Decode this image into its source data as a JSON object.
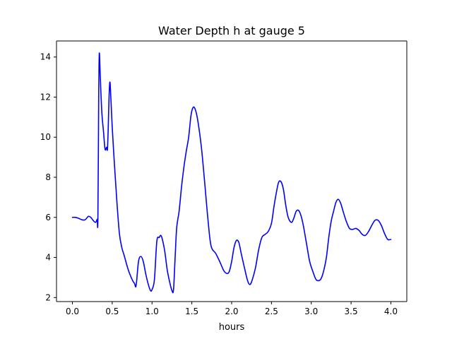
{
  "chart_data": {
    "type": "line",
    "title": "Water Depth h at gauge 5",
    "xlabel": "hours",
    "ylabel": "",
    "xlim": [
      -0.2,
      4.2
    ],
    "ylim": [
      1.8,
      14.8
    ],
    "xticks": [
      0.0,
      0.5,
      1.0,
      1.5,
      2.0,
      2.5,
      3.0,
      3.5,
      4.0
    ],
    "xtick_labels": [
      "0.0",
      "0.5",
      "1.0",
      "1.5",
      "2.0",
      "2.5",
      "3.0",
      "3.5",
      "4.0"
    ],
    "yticks": [
      2,
      4,
      6,
      8,
      10,
      12,
      14
    ],
    "ytick_labels": [
      "2",
      "4",
      "6",
      "8",
      "10",
      "12",
      "14"
    ],
    "grid": false,
    "series": [
      {
        "color": "#0000ff",
        "x": [
          0.0,
          0.04,
          0.08,
          0.12,
          0.16,
          0.2,
          0.23,
          0.26,
          0.29,
          0.31,
          0.32,
          0.33,
          0.335,
          0.34,
          0.35,
          0.37,
          0.39,
          0.41,
          0.43,
          0.44,
          0.45,
          0.46,
          0.47,
          0.48,
          0.5,
          0.53,
          0.56,
          0.59,
          0.62,
          0.65,
          0.7,
          0.75,
          0.78,
          0.8,
          0.83,
          0.86,
          0.89,
          0.92,
          0.95,
          0.98,
          1.0,
          1.03,
          1.06,
          1.09,
          1.11,
          1.13,
          1.16,
          1.19,
          1.22,
          1.25,
          1.27,
          1.29,
          1.31,
          1.34,
          1.37,
          1.4,
          1.43,
          1.46,
          1.49,
          1.52,
          1.55,
          1.58,
          1.62,
          1.66,
          1.7,
          1.74,
          1.8,
          1.85,
          1.9,
          1.94,
          1.97,
          2.0,
          2.03,
          2.06,
          2.09,
          2.12,
          2.16,
          2.2,
          2.23,
          2.26,
          2.3,
          2.34,
          2.38,
          2.42,
          2.46,
          2.5,
          2.53,
          2.56,
          2.59,
          2.62,
          2.65,
          2.68,
          2.71,
          2.75,
          2.78,
          2.81,
          2.84,
          2.87,
          2.9,
          2.94,
          2.98,
          3.02,
          3.06,
          3.1,
          3.13,
          3.16,
          3.19,
          3.22,
          3.25,
          3.28,
          3.31,
          3.34,
          3.37,
          3.4,
          3.44,
          3.48,
          3.52,
          3.56,
          3.6,
          3.64,
          3.68,
          3.72,
          3.76,
          3.8,
          3.84,
          3.88,
          3.92,
          3.96,
          4.0
        ],
        "y": [
          6.0,
          6.0,
          5.95,
          5.88,
          5.88,
          6.05,
          6.0,
          5.85,
          5.75,
          5.9,
          5.95,
          12.0,
          13.8,
          14.15,
          13.0,
          11.2,
          10.3,
          9.4,
          9.5,
          9.4,
          10.5,
          12.0,
          12.75,
          12.2,
          10.5,
          8.5,
          6.7,
          5.2,
          4.5,
          4.1,
          3.4,
          2.9,
          2.7,
          2.6,
          3.8,
          4.05,
          3.8,
          3.2,
          2.7,
          2.35,
          2.4,
          2.9,
          4.8,
          5.0,
          5.1,
          4.9,
          4.3,
          3.4,
          2.8,
          2.35,
          2.4,
          4.0,
          5.5,
          6.3,
          7.5,
          8.5,
          9.3,
          10.0,
          11.1,
          11.5,
          11.3,
          10.7,
          9.5,
          7.8,
          6.0,
          4.6,
          4.2,
          3.8,
          3.35,
          3.2,
          3.3,
          3.8,
          4.5,
          4.85,
          4.75,
          4.2,
          3.5,
          2.85,
          2.65,
          2.9,
          3.5,
          4.4,
          5.0,
          5.15,
          5.3,
          5.7,
          6.5,
          7.2,
          7.75,
          7.78,
          7.4,
          6.6,
          6.0,
          5.75,
          5.95,
          6.3,
          6.35,
          6.1,
          5.6,
          4.7,
          3.8,
          3.3,
          2.9,
          2.85,
          3.0,
          3.4,
          4.0,
          5.0,
          5.8,
          6.3,
          6.75,
          6.9,
          6.7,
          6.3,
          5.8,
          5.45,
          5.4,
          5.45,
          5.35,
          5.15,
          5.1,
          5.3,
          5.6,
          5.85,
          5.85,
          5.6,
          5.2,
          4.9,
          4.9
        ]
      }
    ]
  }
}
